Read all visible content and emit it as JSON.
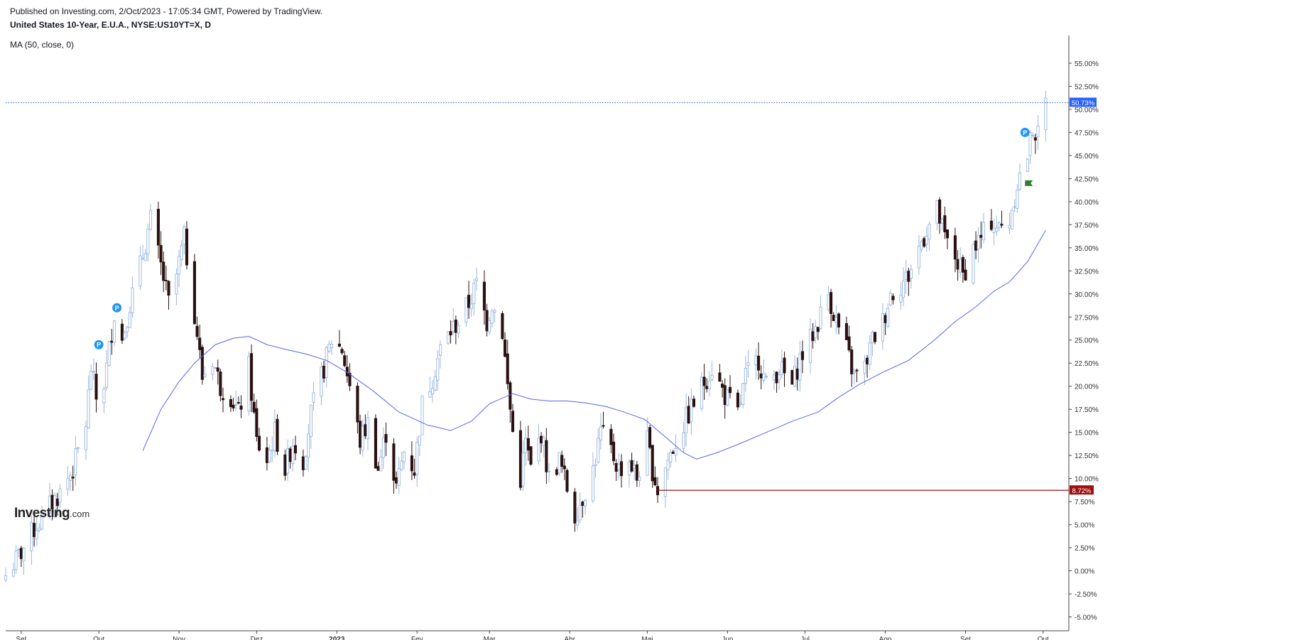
{
  "header": {
    "published": "Published on Investing.com, 2/Oct/2023 - 17:05:34 GMT, Powered by TradingView.",
    "symbol": "United States 10-Year, E.U.A., NYSE:US10YT=X, D",
    "indicator": "MA (50, close, 0)"
  },
  "logo": {
    "brand": "Investing",
    "domain": ".com"
  },
  "colors": {
    "up_candle": "#9ab7dd",
    "down_candle": "#2a1010",
    "ma_line": "#5566ee",
    "current_line": "#2962ff",
    "support_line": "#a01010",
    "marker": "#2196f3",
    "flag": "#2e7d32",
    "axis": "#555555"
  },
  "icons": {
    "event_marker": "P",
    "flag": "flag-icon"
  },
  "chart_data": {
    "type": "candlestick",
    "title": "United States 10-Year, E.U.A., NYSE:US10YT=X, D",
    "y_axis_position": "right",
    "ylim": [
      -6.5,
      58
    ],
    "yticks": [
      -5,
      -2.5,
      0,
      2.5,
      5,
      7.5,
      10,
      12.5,
      15,
      17.5,
      20,
      22.5,
      25,
      27.5,
      30,
      32.5,
      35,
      37.5,
      40,
      42.5,
      45,
      47.5,
      50,
      52.5,
      55
    ],
    "ytick_labels": [
      "-5.00%",
      "-2.50%",
      "0.00%",
      "2.50%",
      "5.00%",
      "7.50%",
      "10.00%",
      "12.50%",
      "15.00%",
      "17.50%",
      "20.00%",
      "22.50%",
      "25.00%",
      "27.50%",
      "30.00%",
      "32.50%",
      "35.00%",
      "37.50%",
      "40.00%",
      "42.50%",
      "45.00%",
      "47.50%",
      "50.00%",
      "52.50%",
      "55.00%"
    ],
    "x_domain": [
      "2022-08-26",
      "2023-10-06"
    ],
    "xticks": [
      {
        "date": "2022-09-01",
        "label": "Set",
        "bold": false
      },
      {
        "date": "2022-10-01",
        "label": "Out",
        "bold": false
      },
      {
        "date": "2022-11-01",
        "label": "Nov",
        "bold": false
      },
      {
        "date": "2022-12-01",
        "label": "Dez",
        "bold": false
      },
      {
        "date": "2023-01-01",
        "label": "2023",
        "bold": true
      },
      {
        "date": "2023-02-01",
        "label": "Fev",
        "bold": false
      },
      {
        "date": "2023-03-01",
        "label": "Mar",
        "bold": false
      },
      {
        "date": "2023-04-01",
        "label": "Abr",
        "bold": false
      },
      {
        "date": "2023-05-01",
        "label": "Mai",
        "bold": false
      },
      {
        "date": "2023-06-01",
        "label": "Jun",
        "bold": false
      },
      {
        "date": "2023-07-01",
        "label": "Jul",
        "bold": false
      },
      {
        "date": "2023-08-01",
        "label": "Ago",
        "bold": false
      },
      {
        "date": "2023-09-01",
        "label": "Set",
        "bold": false
      },
      {
        "date": "2023-10-01",
        "label": "Out",
        "bold": false
      }
    ],
    "close_series": [
      [
        "2022-08-26",
        -0.5
      ],
      [
        "2022-09-01",
        2
      ],
      [
        "2022-09-06",
        4.5
      ],
      [
        "2022-09-12",
        7
      ],
      [
        "2022-09-16",
        8.5
      ],
      [
        "2022-09-21",
        11
      ],
      [
        "2022-09-26",
        16
      ],
      [
        "2022-09-28",
        22
      ],
      [
        "2022-10-01",
        17
      ],
      [
        "2022-10-04",
        22
      ],
      [
        "2022-10-07",
        28
      ],
      [
        "2022-10-10",
        25
      ],
      [
        "2022-10-13",
        29
      ],
      [
        "2022-10-17",
        33
      ],
      [
        "2022-10-21",
        38
      ],
      [
        "2022-10-25",
        33
      ],
      [
        "2022-10-28",
        29
      ],
      [
        "2022-10-31",
        32
      ],
      [
        "2022-11-03",
        36
      ],
      [
        "2022-11-07",
        28
      ],
      [
        "2022-11-10",
        21
      ],
      [
        "2022-11-14",
        23
      ],
      [
        "2022-11-17",
        20
      ],
      [
        "2022-11-21",
        19
      ],
      [
        "2022-11-24",
        17
      ],
      [
        "2022-11-28",
        22
      ],
      [
        "2022-12-01",
        14
      ],
      [
        "2022-12-05",
        12
      ],
      [
        "2022-12-08",
        15
      ],
      [
        "2022-12-12",
        11
      ],
      [
        "2022-12-15",
        14
      ],
      [
        "2022-12-19",
        12
      ],
      [
        "2022-12-22",
        17
      ],
      [
        "2022-12-27",
        22
      ],
      [
        "2022-12-30",
        25
      ],
      [
        "2023-01-03",
        24
      ],
      [
        "2023-01-06",
        20
      ],
      [
        "2023-01-10",
        14
      ],
      [
        "2023-01-13",
        16
      ],
      [
        "2023-01-17",
        11
      ],
      [
        "2023-01-20",
        15
      ],
      [
        "2023-01-24",
        9
      ],
      [
        "2023-01-27",
        13
      ],
      [
        "2023-01-31",
        11
      ],
      [
        "2023-02-03",
        18
      ],
      [
        "2023-02-07",
        21
      ],
      [
        "2023-02-10",
        24
      ],
      [
        "2023-02-14",
        26
      ],
      [
        "2023-02-17",
        27
      ],
      [
        "2023-02-21",
        29
      ],
      [
        "2023-02-24",
        31
      ],
      [
        "2023-02-28",
        27
      ],
      [
        "2023-03-02",
        29
      ],
      [
        "2023-03-06",
        26
      ],
      [
        "2023-03-08",
        20
      ],
      [
        "2023-03-10",
        15
      ],
      [
        "2023-03-13",
        10
      ],
      [
        "2023-03-15",
        14
      ],
      [
        "2023-03-17",
        11
      ],
      [
        "2023-03-21",
        15
      ],
      [
        "2023-03-24",
        10
      ],
      [
        "2023-03-28",
        12
      ],
      [
        "2023-03-31",
        9
      ],
      [
        "2023-04-03",
        6
      ],
      [
        "2023-04-06",
        8
      ],
      [
        "2023-04-10",
        11
      ],
      [
        "2023-04-13",
        15
      ],
      [
        "2023-04-17",
        13
      ],
      [
        "2023-04-20",
        11
      ],
      [
        "2023-04-24",
        12
      ],
      [
        "2023-04-27",
        10
      ],
      [
        "2023-05-01",
        14
      ],
      [
        "2023-05-03",
        11
      ],
      [
        "2023-05-05",
        8.7
      ],
      [
        "2023-05-09",
        12
      ],
      [
        "2023-05-12",
        14
      ],
      [
        "2023-05-17",
        17
      ],
      [
        "2023-05-22",
        20
      ],
      [
        "2023-05-26",
        22
      ],
      [
        "2023-05-31",
        19
      ],
      [
        "2023-06-05",
        17
      ],
      [
        "2023-06-08",
        21
      ],
      [
        "2023-06-13",
        23
      ],
      [
        "2023-06-16",
        20
      ],
      [
        "2023-06-21",
        22
      ],
      [
        "2023-06-26",
        20
      ],
      [
        "2023-06-29",
        23
      ],
      [
        "2023-07-03",
        25
      ],
      [
        "2023-07-06",
        27
      ],
      [
        "2023-07-10",
        30
      ],
      [
        "2023-07-13",
        27
      ],
      [
        "2023-07-17",
        24
      ],
      [
        "2023-07-20",
        21
      ],
      [
        "2023-07-24",
        22
      ],
      [
        "2023-07-27",
        25
      ],
      [
        "2023-07-31",
        27
      ],
      [
        "2023-08-03",
        30
      ],
      [
        "2023-08-07",
        31
      ],
      [
        "2023-08-10",
        32
      ],
      [
        "2023-08-14",
        35
      ],
      [
        "2023-08-17",
        37
      ],
      [
        "2023-08-21",
        39
      ],
      [
        "2023-08-24",
        36
      ],
      [
        "2023-08-28",
        34
      ],
      [
        "2023-08-31",
        32
      ],
      [
        "2023-09-04",
        35
      ],
      [
        "2023-09-07",
        36
      ],
      [
        "2023-09-11",
        38
      ],
      [
        "2023-09-14",
        37
      ],
      [
        "2023-09-18",
        38
      ],
      [
        "2023-09-21",
        42
      ],
      [
        "2023-09-25",
        45
      ],
      [
        "2023-09-27",
        48
      ],
      [
        "2023-09-29",
        47
      ],
      [
        "2023-10-02",
        50.73
      ]
    ],
    "moving_average": {
      "name": "MA (50, close, 0)",
      "points": [
        [
          "2022-10-18",
          13
        ],
        [
          "2022-10-25",
          17.5
        ],
        [
          "2022-11-01",
          20.5
        ],
        [
          "2022-11-07",
          22.5
        ],
        [
          "2022-11-15",
          24.5
        ],
        [
          "2022-11-22",
          25.2
        ],
        [
          "2022-11-28",
          25.4
        ],
        [
          "2022-12-05",
          24.5
        ],
        [
          "2022-12-12",
          24
        ],
        [
          "2022-12-20",
          23.5
        ],
        [
          "2022-12-28",
          22.8
        ],
        [
          "2023-01-05",
          21.5
        ],
        [
          "2023-01-15",
          19.5
        ],
        [
          "2023-01-25",
          17.2
        ],
        [
          "2023-02-05",
          15.8
        ],
        [
          "2023-02-14",
          15.2
        ],
        [
          "2023-02-22",
          16.2
        ],
        [
          "2023-03-01",
          18.1
        ],
        [
          "2023-03-10",
          19.2
        ],
        [
          "2023-03-17",
          18.6
        ],
        [
          "2023-03-24",
          18.4
        ],
        [
          "2023-03-31",
          18.4
        ],
        [
          "2023-04-07",
          18.2
        ],
        [
          "2023-04-15",
          17.8
        ],
        [
          "2023-04-22",
          17.2
        ],
        [
          "2023-04-30",
          16.4
        ],
        [
          "2023-05-08",
          14.5
        ],
        [
          "2023-05-15",
          12.8
        ],
        [
          "2023-05-20",
          12.1
        ],
        [
          "2023-05-28",
          12.8
        ],
        [
          "2023-06-06",
          13.8
        ],
        [
          "2023-06-16",
          15
        ],
        [
          "2023-06-26",
          16.2
        ],
        [
          "2023-07-06",
          17.2
        ],
        [
          "2023-07-14",
          18.8
        ],
        [
          "2023-07-22",
          20.2
        ],
        [
          "2023-07-31",
          21.5
        ],
        [
          "2023-08-10",
          22.8
        ],
        [
          "2023-08-20",
          25
        ],
        [
          "2023-08-28",
          27
        ],
        [
          "2023-09-05",
          28.6
        ],
        [
          "2023-09-12",
          30.3
        ],
        [
          "2023-09-18",
          31.3
        ],
        [
          "2023-09-25",
          33.5
        ],
        [
          "2023-10-02",
          36.9
        ]
      ]
    },
    "current_value": {
      "value": 50.73,
      "label": "50.73%"
    },
    "support_level": {
      "value": 8.72,
      "label": "8.72%",
      "from_date": "2023-05-05"
    },
    "event_markers": [
      {
        "date": "2022-10-01",
        "value": 24.5,
        "label": "P"
      },
      {
        "date": "2022-10-08",
        "value": 28.5,
        "label": "P"
      },
      {
        "date": "2023-09-24",
        "value": 47.5,
        "label": "P"
      }
    ],
    "flag": {
      "date": "2023-09-24",
      "value": 42
    }
  }
}
